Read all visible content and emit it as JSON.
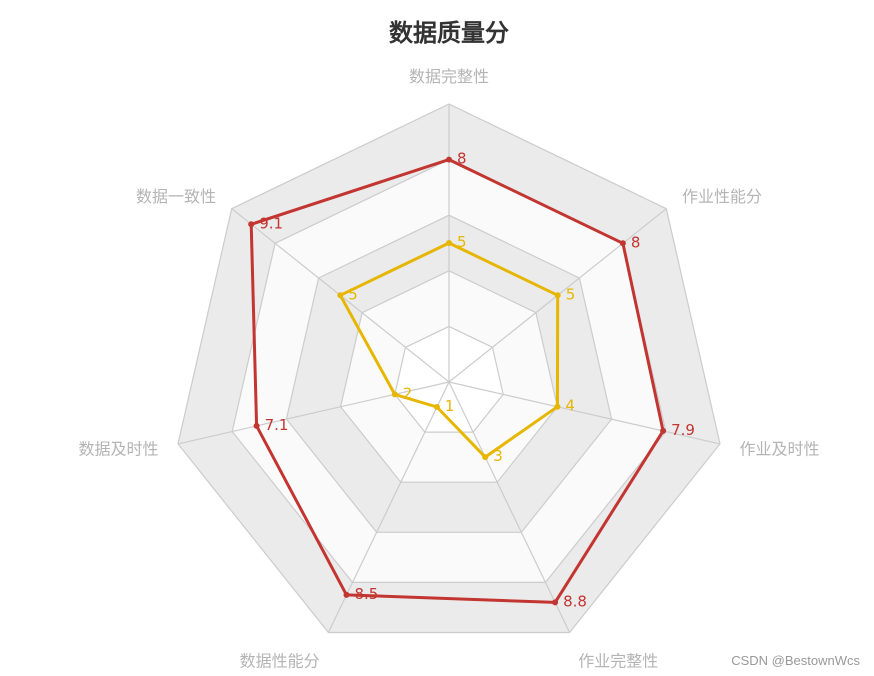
{
  "chart_data": {
    "type": "radar",
    "title": "数据质量分",
    "indicators": [
      "数据完整性",
      "作业性能分",
      "作业及时性",
      "作业完整性",
      "数据性能分",
      "数据及时性",
      "数据一致性"
    ],
    "max": 10,
    "split_number": 5,
    "series": [
      {
        "values": [
          8,
          8,
          7.9,
          8.8,
          8.5,
          7.1,
          9.1
        ],
        "color": "#c23531"
      },
      {
        "values": [
          5,
          5,
          4,
          3,
          1,
          2,
          5
        ],
        "color": "#e6b600"
      }
    ],
    "colors": {
      "split_area_light": "#fafafa",
      "split_area_dark": "#ebebeb",
      "split_line": "#cccccc",
      "axis_label": "#b4b4b4"
    }
  },
  "watermark": "CSDN @BestownWcs"
}
